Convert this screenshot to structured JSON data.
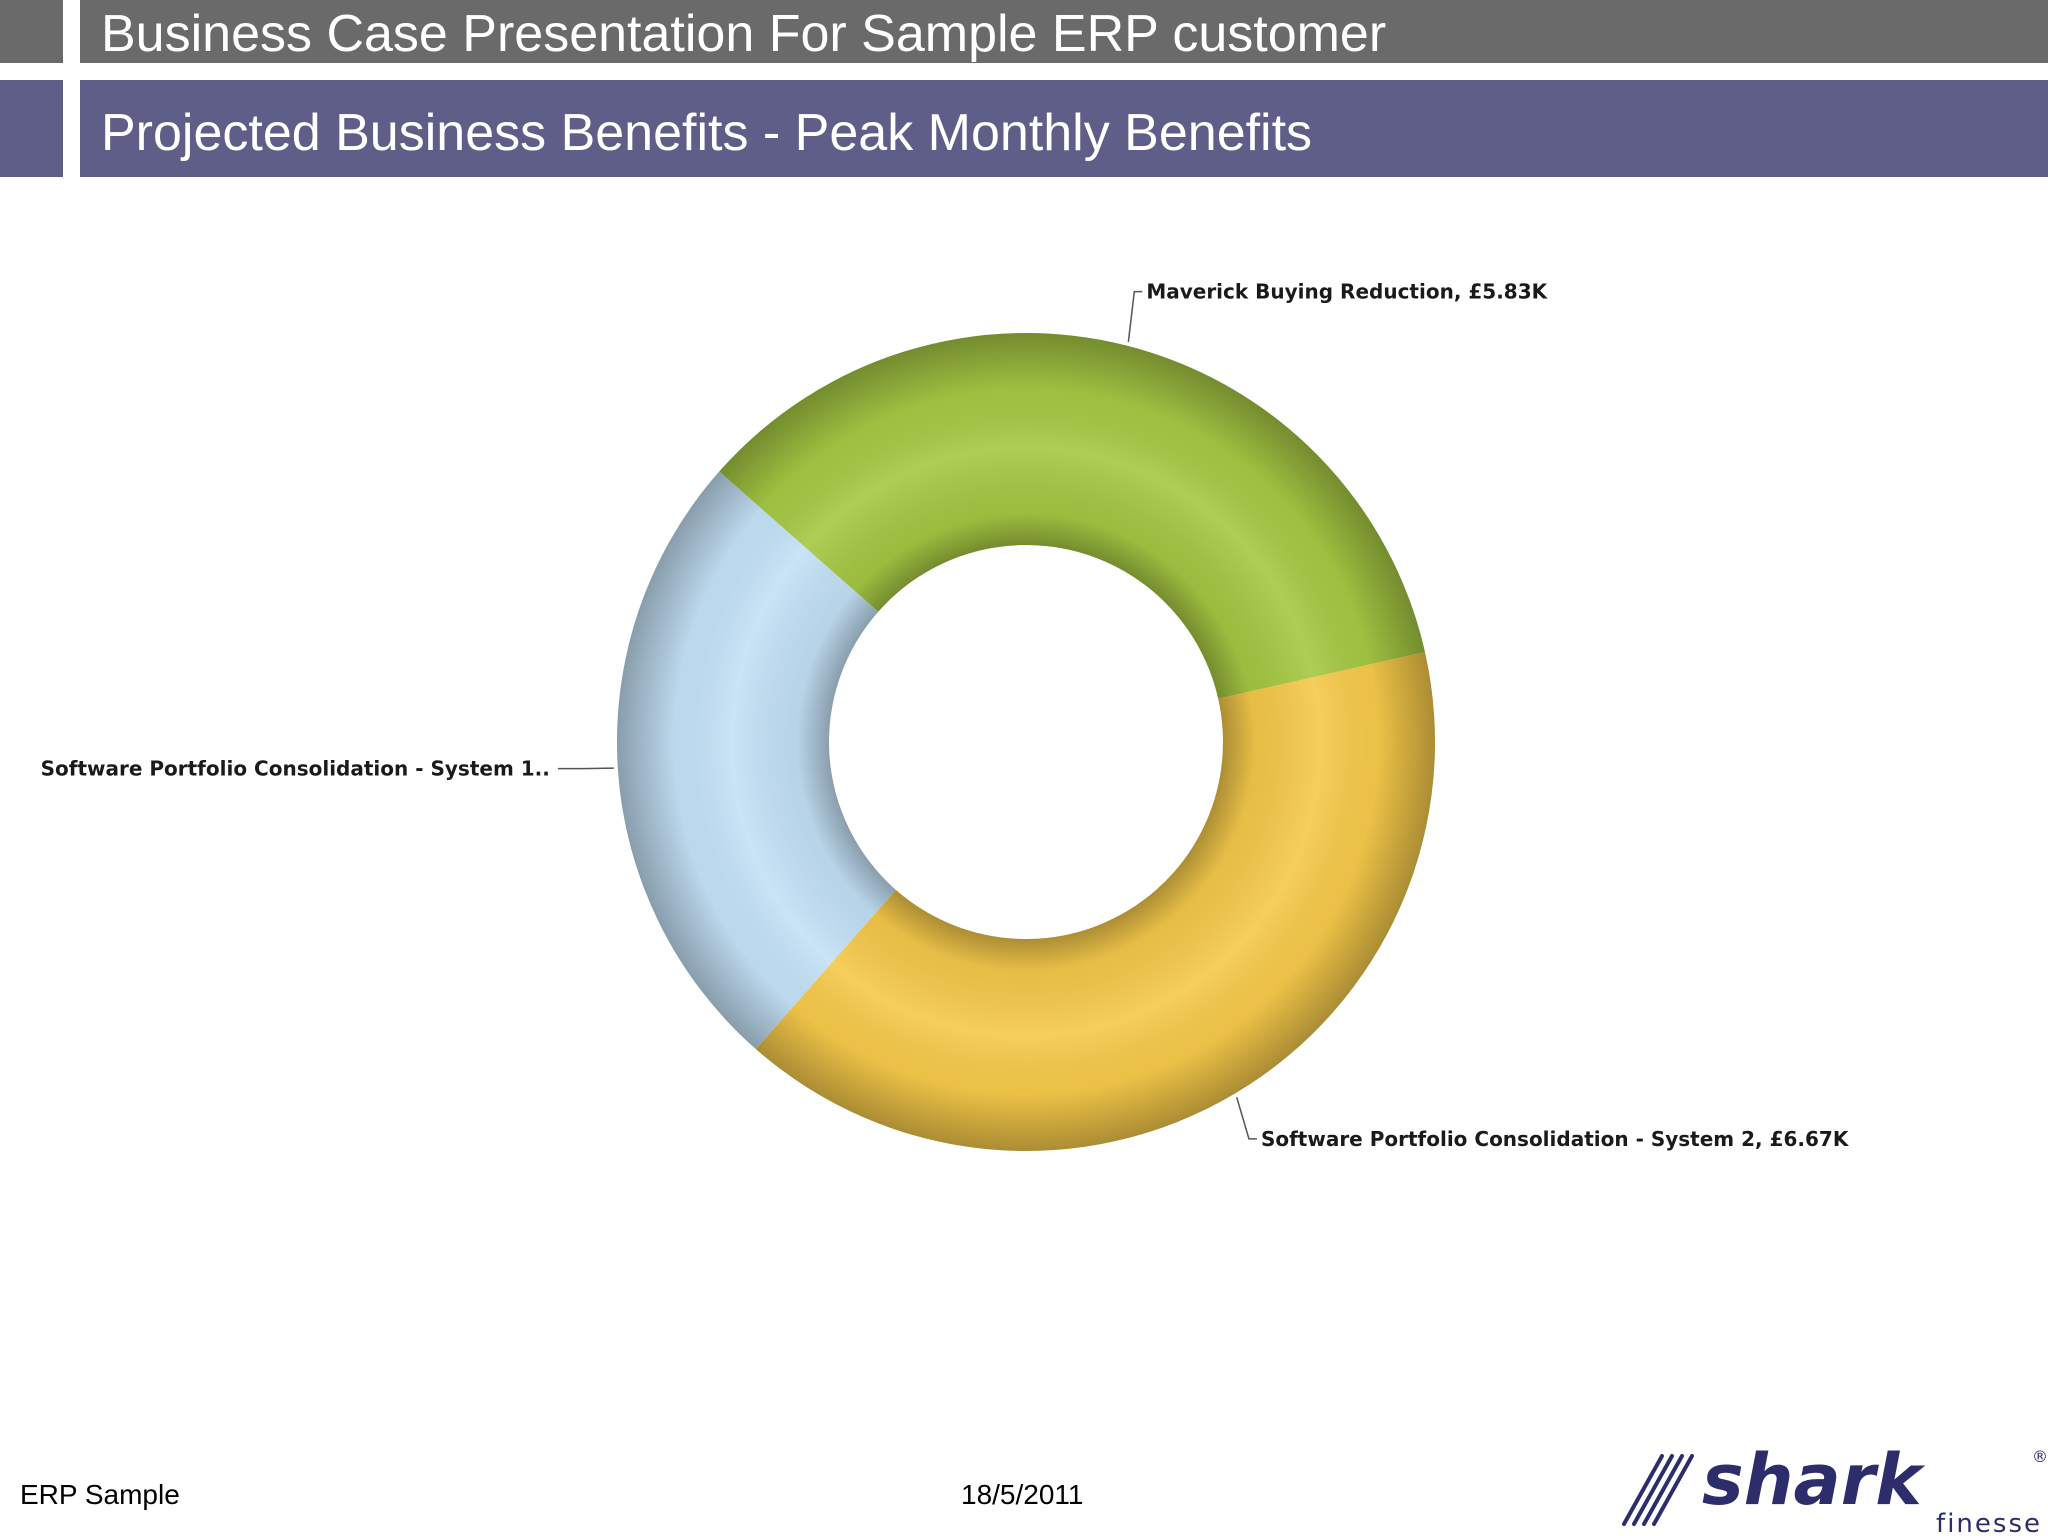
{
  "header": {
    "title": "Business Case Presentation For Sample ERP customer",
    "subtitle": "Projected Business Benefits - Peak Monthly Benefits"
  },
  "chart_data": {
    "type": "pie",
    "variant": "donut",
    "title": "",
    "currency": "£",
    "series": [
      {
        "name": "Maverick Buying Reduction",
        "value": 5.83,
        "label": "Maverick Buying Reduction, £5.83K",
        "color": "#a5c843"
      },
      {
        "name": "Software Portfolio Consolidation - System 2",
        "value": 6.67,
        "label": "Software Portfolio Consolidation - System 2, £6.67K",
        "color": "#f5c94a"
      },
      {
        "name": "Software Portfolio Consolidation - System 1",
        "value": 4.17,
        "label": "Software Portfolio Consolidation - System 1..",
        "color": "#c3e1f6"
      }
    ]
  },
  "footer": {
    "left": "ERP Sample",
    "date": "18/5/2011"
  },
  "logo": {
    "name": "shark",
    "tagline": "finesse",
    "color": "#2d2d6b"
  }
}
